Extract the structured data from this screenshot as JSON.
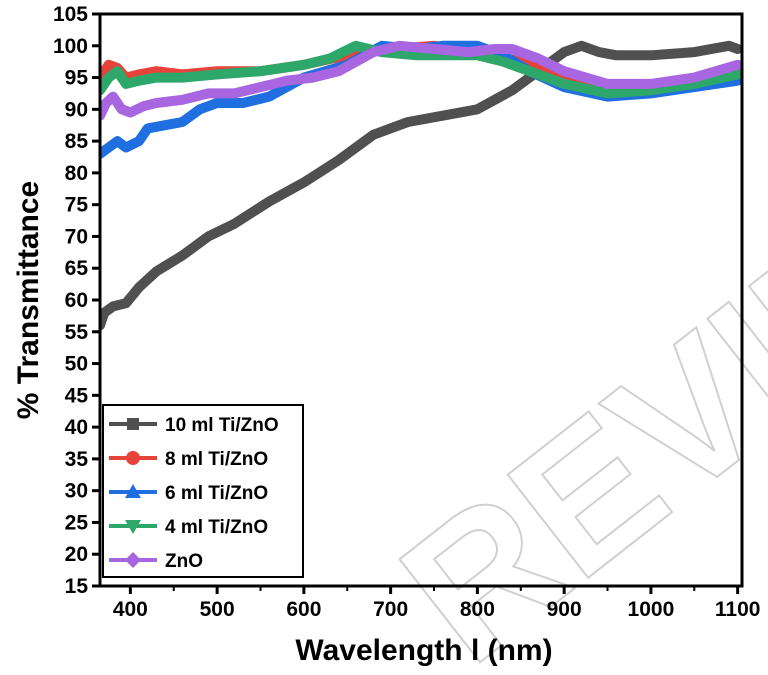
{
  "chart_data": {
    "type": "line",
    "title": "",
    "xlabel": "Wavelength l (nm)",
    "ylabel": "% Transmittance",
    "xlim": [
      365,
      1105
    ],
    "ylim": [
      15,
      105
    ],
    "xticks": [
      400,
      500,
      600,
      700,
      800,
      900,
      1000,
      1100
    ],
    "yticks": [
      15,
      20,
      25,
      30,
      35,
      40,
      45,
      50,
      55,
      60,
      65,
      70,
      75,
      80,
      85,
      90,
      95,
      100,
      105
    ],
    "legend_position": "bottom-left",
    "watermark": "REVIEW",
    "series": [
      {
        "name": "10 ml Ti/ZnO",
        "color": "#505050",
        "marker": "square",
        "x": [
          365,
          370,
          380,
          395,
          410,
          430,
          460,
          490,
          520,
          560,
          600,
          640,
          680,
          720,
          760,
          800,
          840,
          870,
          900,
          920,
          940,
          960,
          1000,
          1050,
          1090,
          1100
        ],
        "y": [
          56,
          58,
          59,
          59.5,
          62,
          64.5,
          67,
          70,
          72,
          75.5,
          78.5,
          82,
          86,
          88,
          89,
          90,
          93,
          96,
          99,
          100,
          99,
          98.5,
          98.5,
          99,
          100,
          99.5
        ]
      },
      {
        "name": "8 ml Ti/ZnO",
        "color": "#e8433a",
        "marker": "circle",
        "x": [
          365,
          375,
          385,
          395,
          410,
          430,
          460,
          500,
          550,
          600,
          650,
          700,
          750,
          800,
          850,
          900,
          950,
          1000,
          1050,
          1100
        ],
        "y": [
          95,
          97,
          96.5,
          95,
          95.5,
          96,
          95.5,
          96,
          96,
          97,
          98.5,
          99.5,
          100,
          99,
          97.5,
          95,
          93,
          93.5,
          94.5,
          96
        ]
      },
      {
        "name": "6 ml Ti/ZnO",
        "color": "#1f6fe0",
        "marker": "triangle-up",
        "x": [
          365,
          375,
          385,
          395,
          410,
          420,
          440,
          460,
          480,
          500,
          530,
          560,
          600,
          650,
          690,
          730,
          760,
          800,
          830,
          860,
          900,
          950,
          1000,
          1050,
          1100
        ],
        "y": [
          83,
          84,
          85,
          84,
          85,
          87,
          87.5,
          88,
          90,
          91,
          91,
          92,
          95,
          97,
          100,
          99.5,
          100,
          100,
          98.5,
          96,
          93.5,
          92,
          92.5,
          93.5,
          94.5
        ]
      },
      {
        "name": "4 ml Ti/ZnO",
        "color": "#2ea86a",
        "marker": "triangle-down",
        "x": [
          365,
          375,
          385,
          395,
          410,
          430,
          460,
          500,
          550,
          600,
          630,
          660,
          690,
          730,
          760,
          800,
          830,
          860,
          900,
          950,
          1000,
          1050,
          1100
        ],
        "y": [
          93,
          95,
          96,
          94,
          94.5,
          95,
          95,
          95.5,
          96,
          97,
          98,
          100,
          99,
          98.5,
          98.5,
          98.5,
          97.5,
          96,
          94,
          92.5,
          93,
          94,
          95.5
        ]
      },
      {
        "name": "ZnO",
        "color": "#a866e0",
        "marker": "diamond",
        "x": [
          365,
          372,
          380,
          390,
          400,
          415,
          430,
          460,
          490,
          520,
          550,
          580,
          610,
          640,
          680,
          710,
          750,
          790,
          820,
          840,
          870,
          900,
          950,
          1000,
          1050,
          1100
        ],
        "y": [
          89,
          91,
          92,
          90,
          89.5,
          90.5,
          91,
          91.5,
          92.5,
          92.5,
          93.5,
          94.5,
          95,
          96,
          99,
          100,
          99.5,
          99,
          99.5,
          99.5,
          98,
          96,
          94,
          94,
          95,
          97
        ]
      }
    ]
  }
}
